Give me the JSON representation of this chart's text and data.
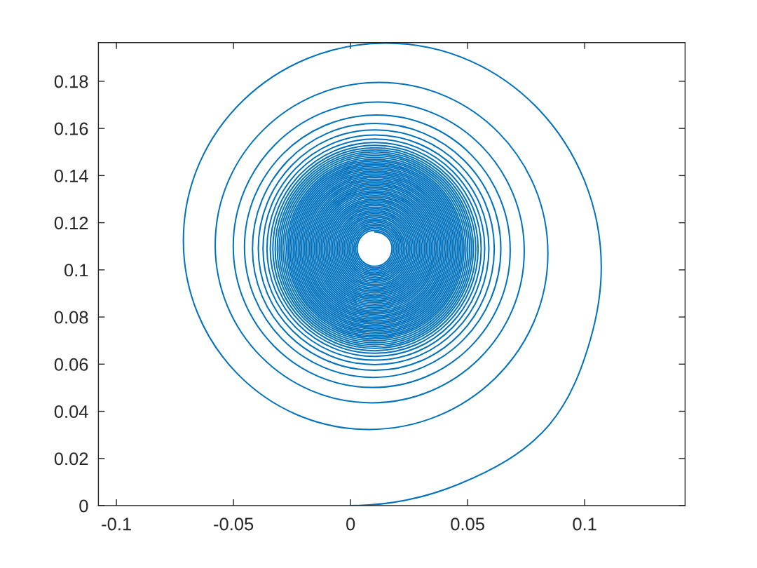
{
  "chart_data": {
    "type": "line",
    "color": "#0072bd",
    "grid": false,
    "xlim": [
      -0.1077,
      0.1429
    ],
    "ylim": [
      0,
      0.1964
    ],
    "xticks": [
      -0.1,
      -0.05,
      0,
      0.05,
      0.1
    ],
    "yticks": [
      0,
      0.02,
      0.04,
      0.06,
      0.08,
      0.1,
      0.12,
      0.14,
      0.16,
      0.18
    ],
    "x": [
      0,
      0.046,
      0.085,
      0.1024,
      0.1071,
      0.015,
      -0.0714,
      0.0079,
      0.0843,
      0.0122,
      -0.0578,
      0.009,
      0.0742,
      0.0114,
      -0.0501,
      0.0094,
      0.0682,
      0.0111,
      -0.0453,
      0.0097,
      0.0642,
      0.0104,
      -0.0419,
      0.0104,
      0.0614,
      0.0104,
      -0.0394,
      0.0104,
      0.0591,
      0.0104,
      -0.0374,
      0.0104,
      0.0573,
      0.0104,
      -0.0357,
      0.0104,
      0.0558,
      0.0104,
      -0.0343,
      0.0104,
      0.0545,
      0.0104,
      -0.0332,
      0.0104,
      0.0535,
      0.0104,
      -0.0322,
      0.0104,
      0.0525,
      0.0104,
      -0.0313,
      0.0104,
      0.0517,
      0.0104,
      -0.0305,
      0.0104,
      0.0509,
      0.0104,
      -0.0297,
      0.0104,
      0.0501,
      0.0104,
      -0.0289,
      0.0104,
      0.0493,
      0.0104,
      -0.0281,
      0.0104,
      0.0485,
      0.0104,
      -0.0273,
      0.0104,
      0.0478,
      0.0104,
      -0.0266,
      0.0104,
      0.0471,
      0.0104,
      -0.0259,
      0.0104,
      0.0464,
      0.0104,
      -0.0252,
      0.0104,
      0.0457,
      0.0104,
      -0.0245,
      0.0104,
      0.045,
      0.0104,
      -0.0238,
      0.0104,
      0.0443,
      0.0104,
      -0.0231,
      0.0104,
      0.0436,
      0.0104,
      -0.0224,
      0.0104,
      0.0429,
      0.0104,
      -0.0217,
      0.0104,
      0.0422,
      0.0104,
      -0.021,
      0.0104,
      0.0415,
      0.0104,
      -0.0203,
      0.0104,
      0.0408,
      0.0104,
      -0.0196,
      0.0104,
      0.0401,
      0.0104,
      -0.0189,
      0.0104,
      0.0394,
      0.0104,
      -0.0182,
      0.0104,
      0.0387,
      0.0104,
      -0.0175,
      0.0104,
      0.038,
      0.0104,
      -0.0168,
      0.0104,
      0.0373,
      0.0104,
      -0.0161,
      0.0104,
      0.0366,
      0.0104,
      -0.0154,
      0.0104,
      0.0359,
      0.0104,
      -0.0147,
      0.0104,
      0.0352,
      0.0104,
      -0.014,
      0.0104,
      0.0345,
      0.0104,
      -0.0133,
      0.0104,
      0.0338,
      0.0104,
      -0.0126,
      0.0104,
      0.0331,
      0.0104,
      -0.0119,
      0.0104,
      0.0324,
      0.0104,
      -0.0112,
      0.0104,
      0.0317,
      0.0104,
      -0.0105,
      0.0104,
      0.031,
      0.0104,
      -0.0098,
      0.0104,
      0.0303,
      0.0104,
      -0.0091,
      0.0104,
      0.0296,
      0.0104,
      -0.0084,
      0.0104,
      0.0289,
      0.0104,
      -0.0077,
      0.0104,
      0.0282,
      0.0104,
      -0.007,
      0.0104,
      0.0275,
      0.0104,
      -0.0063,
      0.0104,
      0.0268,
      0.0104,
      -0.0056,
      0.0104,
      0.0261,
      0.0104,
      -0.0049,
      0.0104,
      0.0254,
      0.0104,
      -0.0042,
      0.0104,
      0.0247,
      0.0104,
      -0.0035,
      0.0104,
      0.024,
      0.0104,
      -0.0028,
      0.0104,
      0.0233,
      0.0104,
      -0.0021,
      0.0104,
      0.0226,
      0.0104,
      -0.0014,
      0.0104,
      0.0219,
      0.0104,
      -0.0007,
      0.0104,
      0.0212,
      0.0104,
      0,
      0.0104,
      0.0205,
      0.0104,
      0.0007,
      0.0104,
      0.0198,
      0.0104,
      0.0014,
      0.0104,
      0.0191,
      0.0104,
      0.0021,
      0.0104,
      0.0184,
      0.0104,
      0.0028,
      0.0104,
      0.0177,
      0.0104
    ],
    "values": [
      0,
      0.009,
      0.0344,
      0.0703,
      0.101,
      0.1962,
      0.1124,
      0.0323,
      0.107,
      0.1795,
      0.1106,
      0.0436,
      0.108,
      0.1712,
      0.11,
      0.0501,
      0.1083,
      0.1657,
      0.1097,
      0.0544,
      0.109,
      0.1621,
      0.109,
      0.0574,
      0.109,
      0.1594,
      0.109,
      0.0598,
      0.109,
      0.1572,
      0.109,
      0.0617,
      0.109,
      0.1555,
      0.109,
      0.0633,
      0.109,
      0.154,
      0.109,
      0.0646,
      0.109,
      0.1528,
      0.109,
      0.0657,
      0.109,
      0.1518,
      0.109,
      0.0667,
      0.109,
      0.1509,
      0.109,
      0.0675,
      0.109,
      0.1501,
      0.109,
      0.0683,
      0.109,
      0.1493,
      0.109,
      0.0691,
      0.109,
      0.1485,
      0.109,
      0.0699,
      0.109,
      0.1477,
      0.109,
      0.0707,
      0.109,
      0.1469,
      0.109,
      0.0714,
      0.109,
      0.1462,
      0.109,
      0.0721,
      0.109,
      0.1455,
      0.109,
      0.0728,
      0.109,
      0.1448,
      0.109,
      0.0735,
      0.109,
      0.1441,
      0.109,
      0.0742,
      0.109,
      0.1434,
      0.109,
      0.0749,
      0.109,
      0.1427,
      0.109,
      0.0756,
      0.109,
      0.142,
      0.109,
      0.0763,
      0.109,
      0.1413,
      0.109,
      0.077,
      0.109,
      0.1406,
      0.109,
      0.0777,
      0.109,
      0.1399,
      0.109,
      0.0784,
      0.109,
      0.1392,
      0.109,
      0.0791,
      0.109,
      0.1385,
      0.109,
      0.0798,
      0.109,
      0.1378,
      0.109,
      0.0805,
      0.109,
      0.1371,
      0.109,
      0.0812,
      0.109,
      0.1364,
      0.109,
      0.0819,
      0.109,
      0.1357,
      0.109,
      0.0826,
      0.109,
      0.135,
      0.109,
      0.0833,
      0.109,
      0.1343,
      0.109,
      0.084,
      0.109,
      0.1336,
      0.109,
      0.0847,
      0.109,
      0.1329,
      0.109,
      0.0854,
      0.109,
      0.1322,
      0.109,
      0.0861,
      0.109,
      0.1315,
      0.109,
      0.0868,
      0.109,
      0.1308,
      0.109,
      0.0875,
      0.109,
      0.1301,
      0.109,
      0.0882,
      0.109,
      0.1294,
      0.109,
      0.0889,
      0.109,
      0.1287,
      0.109,
      0.0896,
      0.109,
      0.128,
      0.109,
      0.0903,
      0.109,
      0.1273,
      0.109,
      0.091,
      0.109,
      0.1266,
      0.109,
      0.0917,
      0.109,
      0.1259,
      0.109,
      0.0924,
      0.109,
      0.1252,
      0.109,
      0.0931,
      0.109,
      0.1245,
      0.109,
      0.0938,
      0.109,
      0.1238,
      0.109,
      0.0945,
      0.109,
      0.1231,
      0.109,
      0.0952,
      0.109,
      0.1224,
      0.109,
      0.0959,
      0.109,
      0.1217,
      0.109,
      0.0966,
      0.109,
      0.121,
      0.109,
      0.0973,
      0.109,
      0.1203,
      0.109,
      0.098,
      0.109,
      0.1196,
      0.109,
      0.0987,
      0.109,
      0.1189,
      0.109,
      0.0994,
      0.109,
      0.1182,
      0.109,
      0.1001,
      0.109,
      0.1175,
      0.109,
      0.1008,
      0.109,
      0.1168,
      0.109,
      0.1015,
      0.109,
      0.1161
    ]
  }
}
